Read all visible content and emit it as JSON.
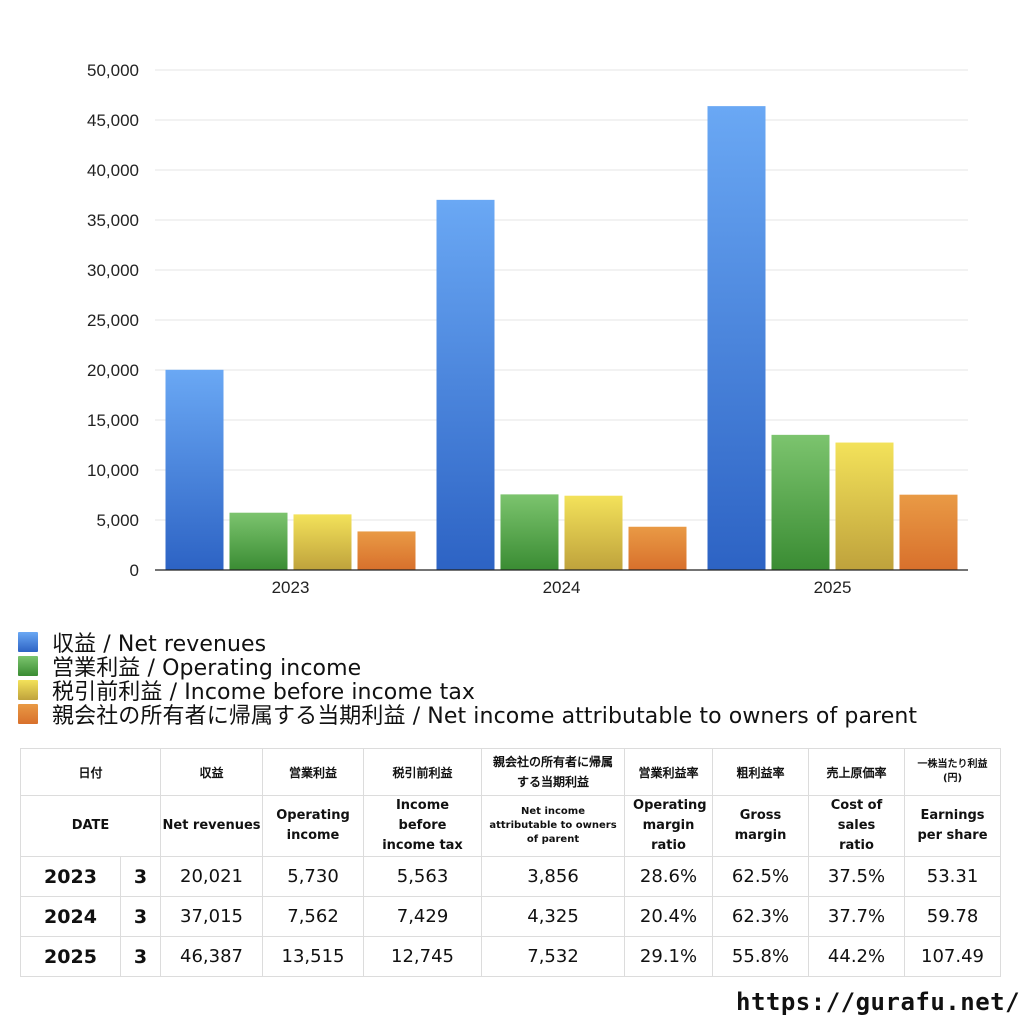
{
  "chart_data": {
    "type": "bar",
    "categories": [
      "2023",
      "2024",
      "2025"
    ],
    "ylim": [
      0,
      50000
    ],
    "yticks": [
      0,
      5000,
      10000,
      15000,
      20000,
      25000,
      30000,
      35000,
      40000,
      45000,
      50000
    ],
    "ytick_labels": [
      "0",
      "5,000",
      "10,000",
      "15,000",
      "20,000",
      "25,000",
      "30,000",
      "35,000",
      "40,000",
      "45,000",
      "50,000"
    ],
    "grid": true,
    "legend_position": "bottom",
    "series": [
      {
        "name": "収益 / Net revenues",
        "values": [
          20021,
          37015,
          46387
        ],
        "color_top": "#6aa8f4",
        "color_bottom": "#2d63c4"
      },
      {
        "name": "営業利益 / Operating income",
        "values": [
          5730,
          7562,
          13515
        ],
        "color_top": "#7cc46e",
        "color_bottom": "#3a8c33"
      },
      {
        "name": "税引前利益 / Income before income tax",
        "values": [
          5563,
          7429,
          12745
        ],
        "color_top": "#f3e25a",
        "color_bottom": "#bfa23c"
      },
      {
        "name": "親会社の所有者に帰属する当期利益 / Net income attributable to owners of parent",
        "values": [
          3856,
          4325,
          7532
        ],
        "color_top": "#e99a45",
        "color_bottom": "#d8702c"
      }
    ]
  },
  "table": {
    "header_jp": [
      "日付",
      "収益",
      "営業利益",
      "税引前利益",
      "親会社の所有者に帰属する当期利益",
      "営業利益率",
      "粗利益率",
      "売上原価率",
      "一株当たり利益(円)"
    ],
    "header_en": [
      "DATE",
      "Net revenues",
      "Operating income",
      "Income before income tax",
      "Net income attributable to owners of parent",
      "Operating margin ratio",
      "Gross margin",
      "Cost of sales ratio",
      "Earnings per share"
    ],
    "rows": [
      {
        "year": "2023",
        "month": "3",
        "values": [
          "20,021",
          "5,730",
          "5,563",
          "3,856",
          "28.6%",
          "62.5%",
          "37.5%",
          "53.31"
        ]
      },
      {
        "year": "2024",
        "month": "3",
        "values": [
          "37,015",
          "7,562",
          "7,429",
          "4,325",
          "20.4%",
          "62.3%",
          "37.7%",
          "59.78"
        ]
      },
      {
        "year": "2025",
        "month": "3",
        "values": [
          "46,387",
          "13,515",
          "12,745",
          "7,532",
          "29.1%",
          "55.8%",
          "44.2%",
          "107.49"
        ]
      }
    ]
  },
  "footer": {
    "url": "https://gurafu.net/"
  }
}
